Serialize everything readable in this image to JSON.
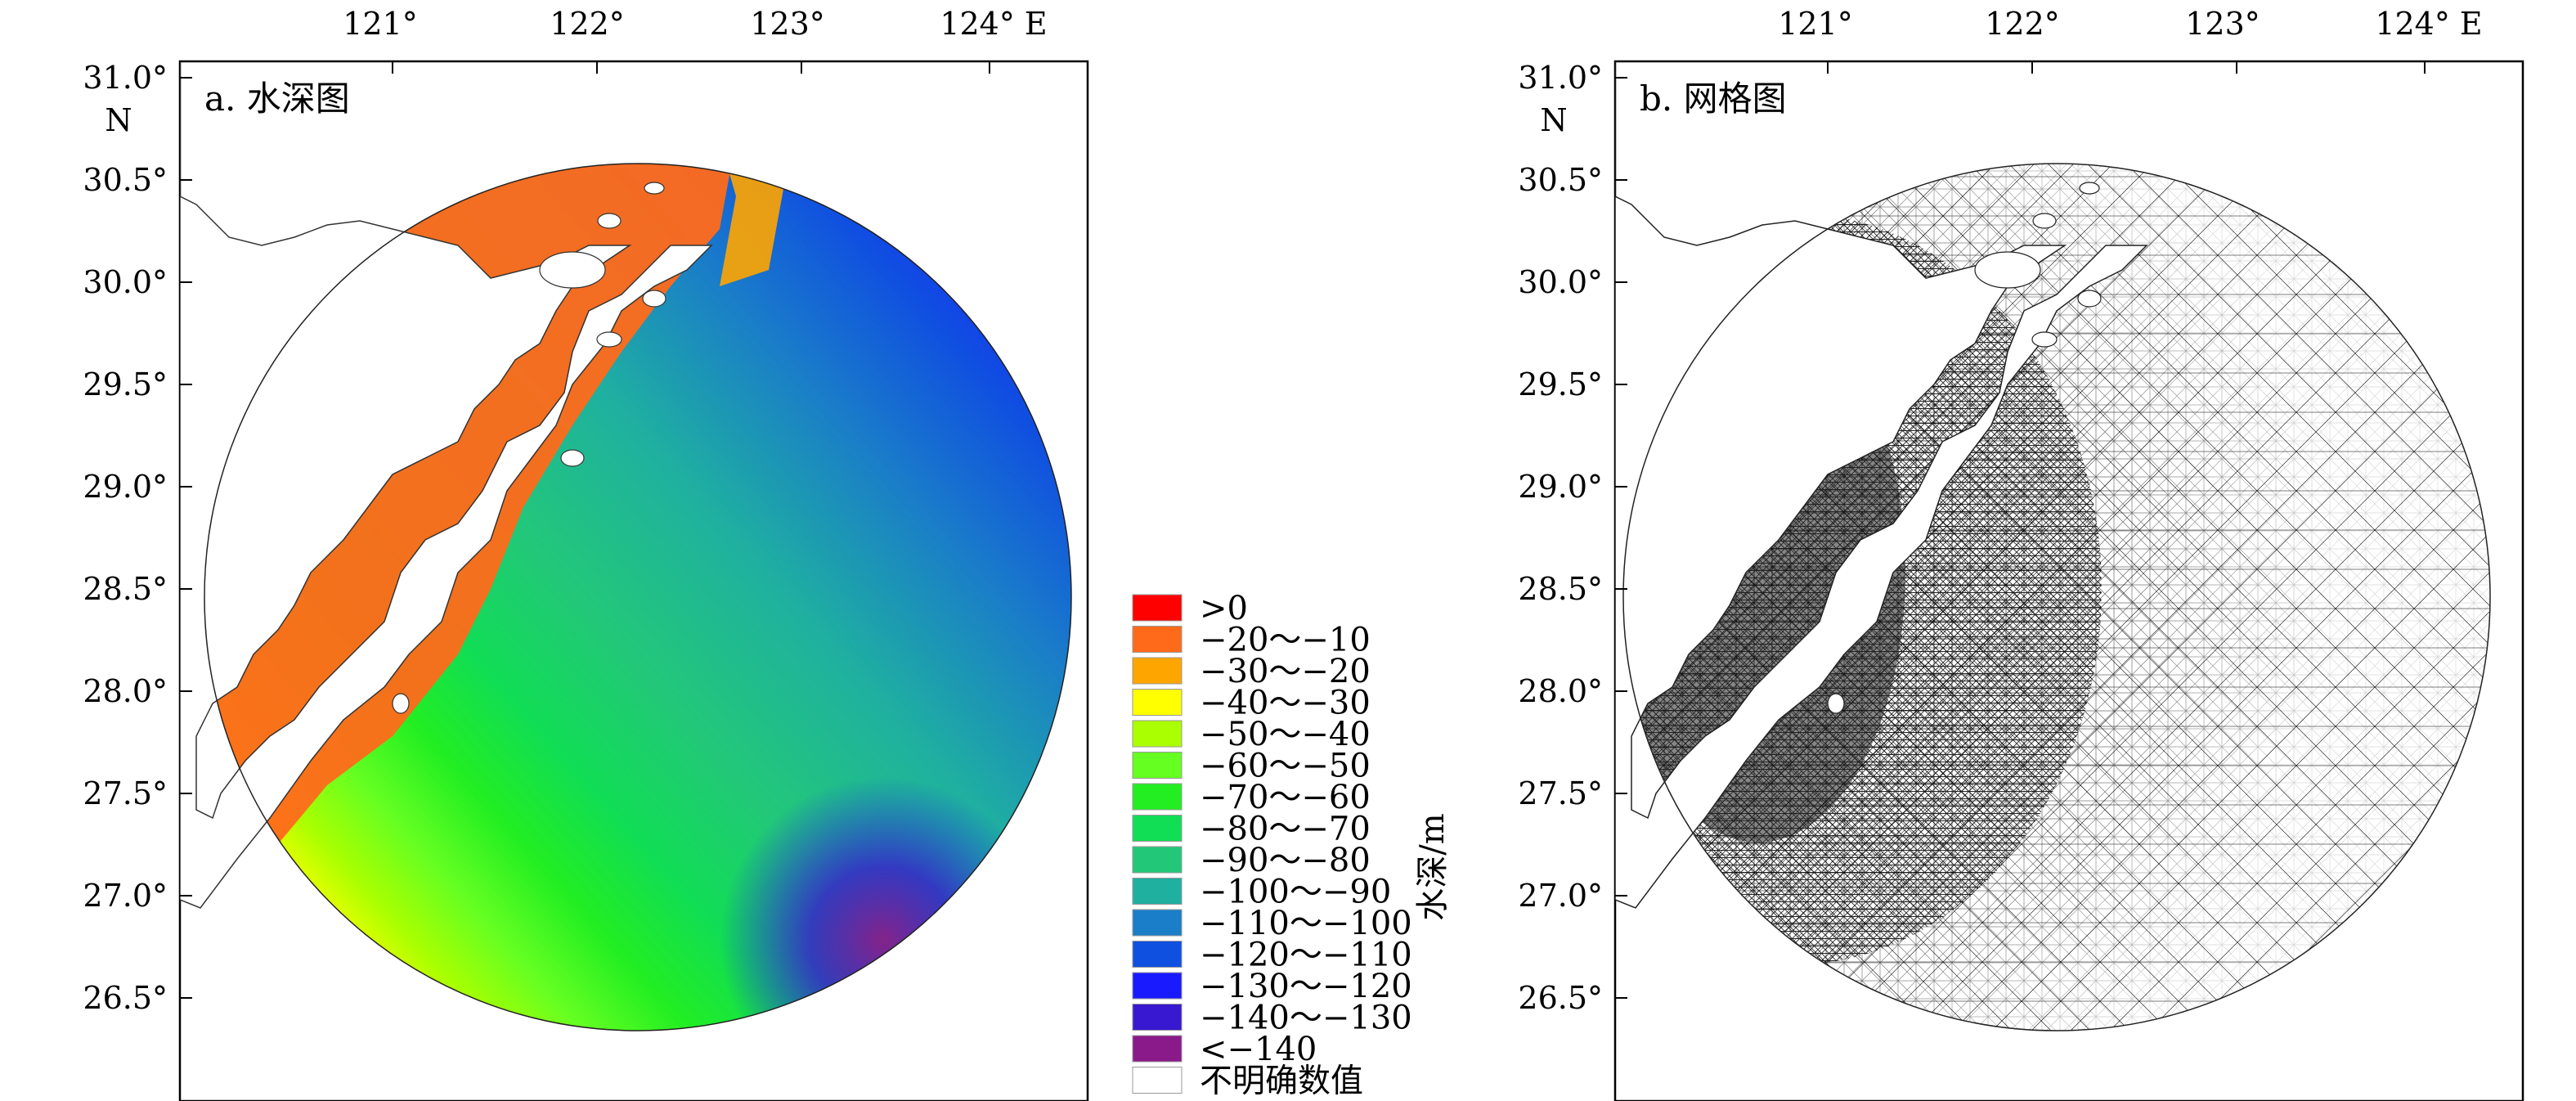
{
  "panel_a": {
    "title": "a. 水深图",
    "lon_ticks": [
      "121°",
      "122°",
      "123°",
      "124° E"
    ],
    "lat_ticks": [
      "31.0°",
      "30.5°",
      "30.0°",
      "29.5°",
      "29.0°",
      "28.5°",
      "28.0°",
      "27.5°",
      "27.0°",
      "26.5°"
    ],
    "lat_unit": "N"
  },
  "panel_b": {
    "title": "b. 网格图",
    "lon_ticks": [
      "121°",
      "122°",
      "123°",
      "124° E"
    ],
    "lat_ticks": [
      "31.0°",
      "30.5°",
      "30.0°",
      "29.5°",
      "29.0°",
      "28.5°",
      "28.0°",
      "27.5°",
      "27.0°",
      "26.5°"
    ],
    "lat_unit": "N"
  },
  "legend": {
    "title": "水深/m",
    "items": [
      {
        "label": ">0",
        "color": "#ff0000"
      },
      {
        "label": "−20～−10",
        "color": "#ff6a1a"
      },
      {
        "label": "−30～−20",
        "color": "#ffa500"
      },
      {
        "label": "−40～−30",
        "color": "#ffff00"
      },
      {
        "label": "−50～−40",
        "color": "#aaff00"
      },
      {
        "label": "−60～−50",
        "color": "#66ff22"
      },
      {
        "label": "−70～−60",
        "color": "#22ee22"
      },
      {
        "label": "−80～−70",
        "color": "#11dd55"
      },
      {
        "label": "−90～−80",
        "color": "#22c878"
      },
      {
        "label": "−100～−90",
        "color": "#1fb0a0"
      },
      {
        "label": "−110～−100",
        "color": "#1a7ec8"
      },
      {
        "label": "−120～−110",
        "color": "#1050e0"
      },
      {
        "label": "−130～−120",
        "color": "#1a1aff"
      },
      {
        "label": "−140～−130",
        "color": "#3818d0"
      },
      {
        "label": "<−140",
        "color": "#8a1a8a"
      },
      {
        "label": "不明确数值",
        "color": "#ffffff"
      }
    ]
  }
}
